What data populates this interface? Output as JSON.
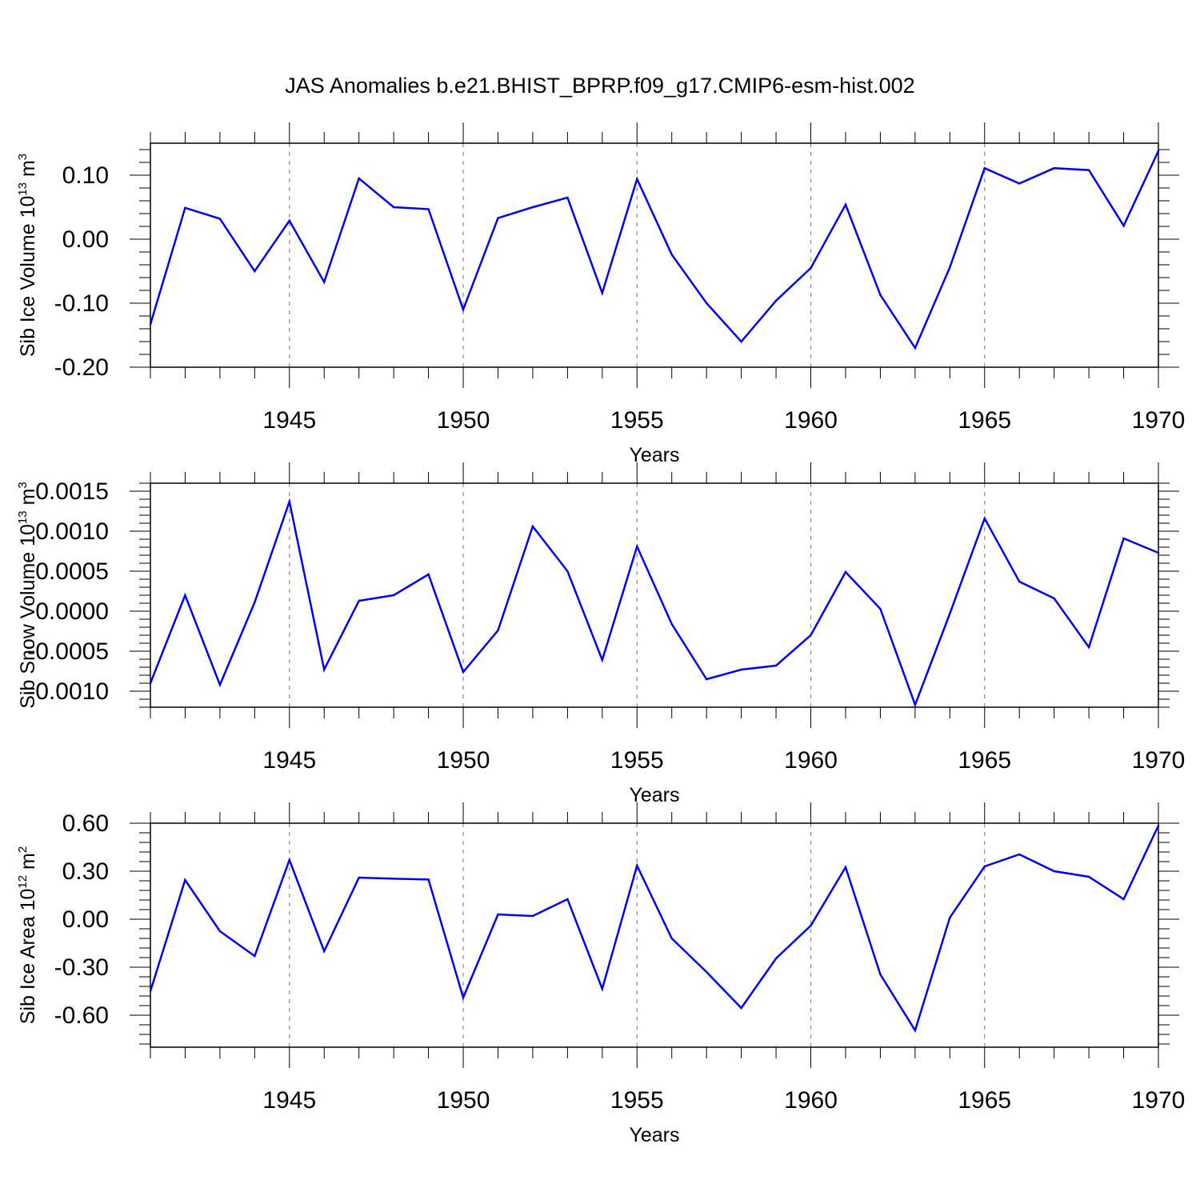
{
  "figure": {
    "title": "JAS Anomalies b.e21.BHIST_BPRP.f09_g17.CMIP6-esm-hist.002"
  },
  "chart_data": [
    {
      "type": "line",
      "title": "",
      "xlabel": "Years",
      "ylabel": {
        "main": "Sib Ice Volume 10",
        "exp": "13",
        "unit": " m",
        "unit_exp": "3"
      },
      "xlim": [
        1941,
        1970
      ],
      "ylim": [
        -0.2,
        0.15
      ],
      "xticks": [
        1945,
        1950,
        1955,
        1960,
        1965,
        1970
      ],
      "xtick_labels": [
        "1945",
        "1950",
        "1955",
        "1960",
        "1965",
        "1970"
      ],
      "yticks": [
        0.1,
        0.0,
        -0.1,
        -0.2
      ],
      "ytick_labels": [
        "0.10",
        "0.00",
        "-0.10",
        "-0.20"
      ],
      "grid": "dashed vertical at major x ticks",
      "line_color": "#0000ff",
      "x": [
        1941,
        1942,
        1943,
        1944,
        1945,
        1946,
        1947,
        1948,
        1949,
        1950,
        1951,
        1952,
        1953,
        1954,
        1955,
        1956,
        1957,
        1958,
        1959,
        1960,
        1961,
        1962,
        1963,
        1964,
        1965,
        1966,
        1967,
        1968,
        1969,
        1970
      ],
      "values": [
        -0.133,
        0.049,
        0.032,
        -0.05,
        0.029,
        -0.067,
        0.095,
        0.05,
        0.047,
        -0.11,
        0.033,
        0.05,
        0.065,
        -0.084,
        0.094,
        -0.024,
        -0.1,
        -0.16,
        -0.096,
        -0.045,
        0.054,
        -0.087,
        -0.17,
        -0.044,
        0.111,
        0.087,
        0.111,
        0.108,
        0.021,
        0.138
      ]
    },
    {
      "type": "line",
      "title": "",
      "xlabel": "Years",
      "ylabel": {
        "main": "Sib Snow Volume 10",
        "exp": "13",
        "unit": " m",
        "unit_exp": "3"
      },
      "xlim": [
        1941,
        1970
      ],
      "ylim": [
        -0.0012,
        0.0016
      ],
      "xticks": [
        1945,
        1950,
        1955,
        1960,
        1965,
        1970
      ],
      "xtick_labels": [
        "1945",
        "1950",
        "1955",
        "1960",
        "1965",
        "1970"
      ],
      "yticks": [
        0.0015,
        0.001,
        0.0005,
        0.0,
        -0.0005,
        -0.001
      ],
      "ytick_labels": [
        "0.0015",
        "0.0010",
        "0.0005",
        "0.0000",
        "-0.0005",
        "-0.0010"
      ],
      "grid": "dashed vertical at major x ticks",
      "line_color": "#0000ff",
      "x": [
        1941,
        1942,
        1943,
        1944,
        1945,
        1946,
        1947,
        1948,
        1949,
        1950,
        1951,
        1952,
        1953,
        1954,
        1955,
        1956,
        1957,
        1958,
        1959,
        1960,
        1961,
        1962,
        1963,
        1964,
        1965,
        1966,
        1967,
        1968,
        1969,
        1970
      ],
      "values": [
        -0.0009,
        0.0002,
        -0.00092,
        0.00011,
        0.00137,
        -0.00073,
        0.00013,
        0.0002,
        0.00046,
        -0.00076,
        -0.00024,
        0.00106,
        0.0005,
        -0.00061,
        0.00081,
        -0.00016,
        -0.00085,
        -0.00073,
        -0.00068,
        -0.0003,
        0.00049,
        3e-05,
        -0.00117,
        -3e-05,
        0.00116,
        0.00037,
        0.00016,
        -0.00045,
        0.00091,
        0.00073
      ]
    },
    {
      "type": "line",
      "title": "",
      "xlabel": "Years",
      "ylabel": {
        "main": "Sib Ice Area 10",
        "exp": "12",
        "unit": " m",
        "unit_exp": "2"
      },
      "xlim": [
        1941,
        1970
      ],
      "ylim": [
        -0.8,
        0.6
      ],
      "xticks": [
        1945,
        1950,
        1955,
        1960,
        1965,
        1970
      ],
      "xtick_labels": [
        "1945",
        "1950",
        "1955",
        "1960",
        "1965",
        "1970"
      ],
      "yticks": [
        0.6,
        0.3,
        0.0,
        -0.3,
        -0.6
      ],
      "ytick_labels": [
        "0.60",
        "0.30",
        "0.00",
        "-0.30",
        "-0.60"
      ],
      "grid": "dashed vertical at major x ticks",
      "line_color": "#0000ff",
      "x": [
        1941,
        1942,
        1943,
        1944,
        1945,
        1946,
        1947,
        1948,
        1949,
        1950,
        1951,
        1952,
        1953,
        1954,
        1955,
        1956,
        1957,
        1958,
        1959,
        1960,
        1961,
        1962,
        1963,
        1964,
        1965,
        1966,
        1967,
        1968,
        1969,
        1970
      ],
      "values": [
        -0.45,
        0.245,
        -0.075,
        -0.23,
        0.37,
        -0.2,
        0.26,
        0.253,
        0.248,
        -0.49,
        0.03,
        0.02,
        0.125,
        -0.435,
        0.335,
        -0.12,
        -0.33,
        -0.555,
        -0.245,
        -0.04,
        0.325,
        -0.345,
        -0.695,
        0.01,
        0.33,
        0.405,
        0.3,
        0.265,
        0.125,
        0.585
      ]
    }
  ]
}
